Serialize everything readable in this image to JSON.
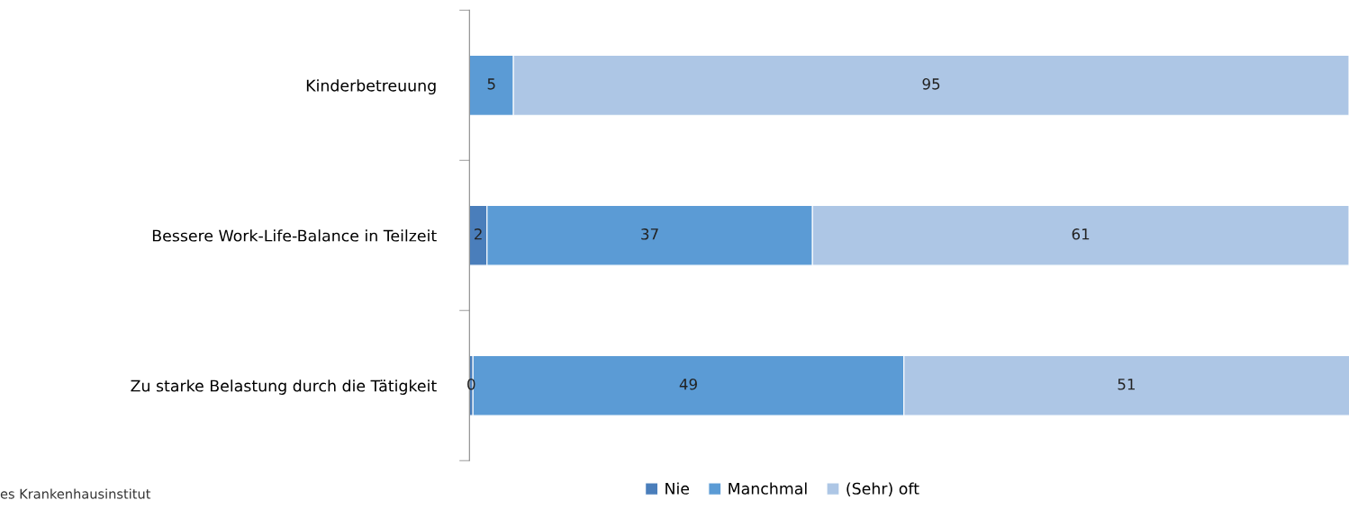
{
  "chart_data": {
    "type": "bar",
    "orientation": "horizontal",
    "stacked": true,
    "categories": [
      "Kinderbetreuung",
      "Bessere Work-Life-Balance in Teilzeit",
      "Zu starke Belastung durch die Tätigkeit"
    ],
    "series": [
      {
        "name": "Nie",
        "color": "#4a7ebb",
        "values": [
          0,
          2,
          0.4
        ],
        "value_labels": [
          null,
          "2",
          "0"
        ]
      },
      {
        "name": "Manchmal",
        "color": "#5b9bd5",
        "values": [
          5,
          37,
          49
        ],
        "value_labels": [
          "5",
          "37",
          "49"
        ]
      },
      {
        "name": "(Sehr) oft",
        "color": "#adc6e5",
        "values": [
          95,
          61,
          51
        ],
        "value_labels": [
          "95",
          "61",
          "51"
        ]
      }
    ],
    "xlim": [
      0,
      100
    ],
    "tick_labels": "y",
    "legend": "bottom",
    "grid": false,
    "annotations": [
      "es Krankenhausinstitut"
    ]
  }
}
